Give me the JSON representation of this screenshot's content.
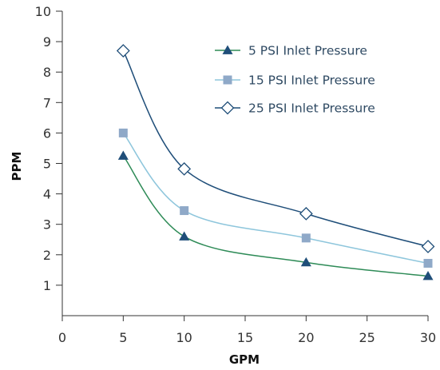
{
  "chart_data": {
    "type": "line",
    "xlabel": "GPM",
    "ylabel": "PPM",
    "xlim": [
      0,
      30
    ],
    "ylim": [
      0,
      10
    ],
    "x_ticks": [
      "0",
      "5",
      "10",
      "15",
      "20",
      "25",
      "30"
    ],
    "y_ticks": [
      "1",
      "2",
      "3",
      "4",
      "5",
      "6",
      "7",
      "8",
      "9",
      "10"
    ],
    "grid": false,
    "legend_position": "top-right",
    "series": [
      {
        "name": "5 PSI Inlet Pressure",
        "marker": "triangle",
        "color": "#2e8b57",
        "marker_color": "#1f4e79",
        "x": [
          5,
          10,
          20,
          30
        ],
        "y": [
          5.25,
          2.6,
          1.75,
          1.3
        ]
      },
      {
        "name": "15 PSI Inlet Pressure",
        "marker": "square",
        "color": "#8ec6dc",
        "marker_color": "#8fa9c8",
        "x": [
          5,
          10,
          20,
          30
        ],
        "y": [
          6.0,
          3.45,
          2.55,
          1.72
        ]
      },
      {
        "name": "25 PSI Inlet Pressure",
        "marker": "diamond-open",
        "color": "#1f4e79",
        "marker_color": "#1f4e79",
        "x": [
          5,
          10,
          20,
          30
        ],
        "y": [
          8.7,
          4.82,
          3.35,
          2.27
        ]
      }
    ]
  }
}
